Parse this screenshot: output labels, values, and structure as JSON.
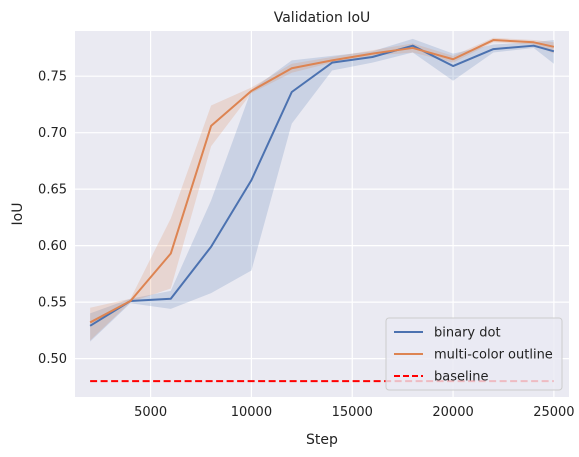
{
  "chart_data": {
    "type": "line",
    "title": "Validation IoU",
    "xlabel": "Step",
    "ylabel": "IoU",
    "xlim": [
      1250,
      25750
    ],
    "ylim": [
      0.466,
      0.79
    ],
    "xticks": [
      5000,
      10000,
      15000,
      20000,
      25000
    ],
    "yticks": [
      0.5,
      0.55,
      0.6,
      0.65,
      0.7,
      0.75
    ],
    "grid": true,
    "legend_position": "bottom-right",
    "x": [
      2000,
      4000,
      6000,
      8000,
      10000,
      12000,
      14000,
      16000,
      18000,
      20000,
      22000,
      24000,
      25000
    ],
    "series": [
      {
        "name": "binary dot",
        "color": "#4c72b0",
        "values": [
          0.529,
          0.551,
          0.553,
          0.599,
          0.658,
          0.736,
          0.762,
          0.767,
          0.777,
          0.759,
          0.774,
          0.777,
          0.772
        ],
        "lower": [
          0.515,
          0.549,
          0.544,
          0.558,
          0.578,
          0.708,
          0.755,
          0.762,
          0.771,
          0.746,
          0.771,
          0.775,
          0.761
        ],
        "upper": [
          0.54,
          0.553,
          0.56,
          0.64,
          0.738,
          0.764,
          0.768,
          0.772,
          0.783,
          0.77,
          0.778,
          0.78,
          0.782
        ]
      },
      {
        "name": "multi-color outline",
        "color": "#dd8452",
        "values": [
          0.532,
          0.551,
          0.593,
          0.706,
          0.737,
          0.757,
          0.764,
          0.77,
          0.775,
          0.765,
          0.782,
          0.78,
          0.776
        ],
        "lower": [
          0.516,
          0.55,
          0.562,
          0.688,
          0.735,
          0.753,
          0.762,
          0.768,
          0.771,
          0.762,
          0.78,
          0.778,
          0.77
        ],
        "upper": [
          0.545,
          0.553,
          0.624,
          0.724,
          0.74,
          0.761,
          0.767,
          0.773,
          0.779,
          0.768,
          0.784,
          0.782,
          0.78
        ]
      }
    ],
    "reference_lines": [
      {
        "name": "baseline",
        "y": 0.48,
        "color": "#ff0000",
        "style": "dashed"
      }
    ]
  }
}
